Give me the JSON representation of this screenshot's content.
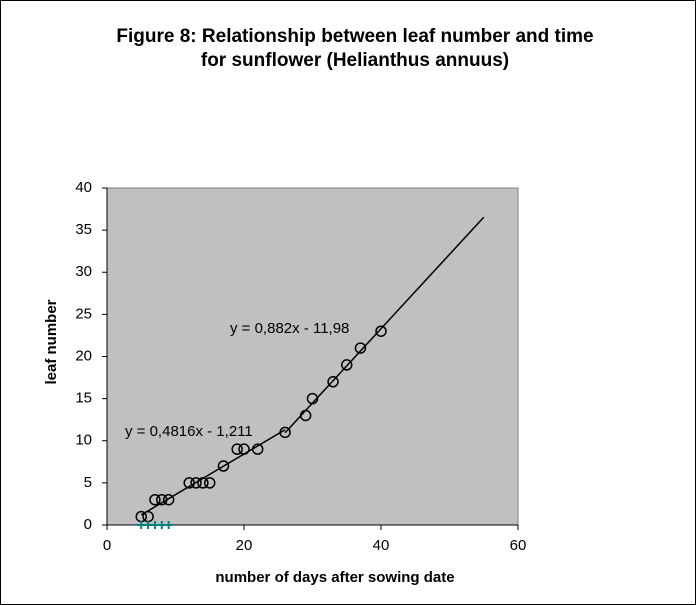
{
  "chart_data": {
    "type": "scatter",
    "title": [
      "Figure 8: Relationship between  leaf number and time",
      "for sunflower (Helianthus annuus)"
    ],
    "x_label": "number of days after sowing date",
    "y_label": "leaf number",
    "xlim": [
      0,
      60
    ],
    "xticks": [
      0,
      20,
      40,
      60
    ],
    "ylim": [
      0,
      40
    ],
    "yticks": [
      0,
      5,
      10,
      15,
      20,
      25,
      30,
      35,
      40
    ],
    "series": [
      {
        "marker": "circle",
        "color": "#000000",
        "x": [
          5,
          6,
          7,
          8,
          9,
          12,
          13,
          14,
          15,
          17,
          19,
          20,
          22,
          26,
          29,
          30,
          33,
          35,
          37,
          40
        ],
        "values": [
          1,
          1,
          3,
          3,
          3,
          5,
          5,
          5,
          5,
          7,
          9,
          9,
          9,
          11,
          13,
          15,
          17,
          19,
          21,
          23
        ]
      },
      {
        "marker": "plus",
        "color": "#008080",
        "x": [
          5,
          6,
          7,
          8,
          9
        ],
        "values": [
          0,
          0,
          0,
          0,
          0
        ]
      }
    ],
    "trendlines": [
      {
        "label": "y = 0,4816x - 1,211",
        "slope": 0.4816,
        "intercept": -1.211,
        "x": [
          5,
          26
        ]
      },
      {
        "label": "y = 0,882x - 11,98",
        "slope": 0.882,
        "intercept": -11.98,
        "x": [
          26,
          55
        ]
      }
    ]
  }
}
